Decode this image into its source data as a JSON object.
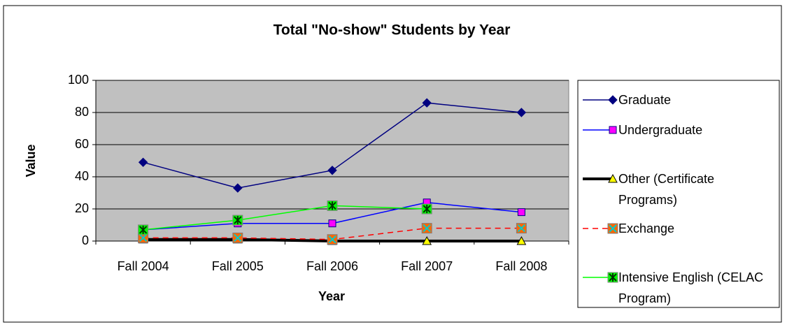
{
  "chart_data": {
    "type": "line",
    "title": "Total \"No-show\" Students by Year",
    "x_label": "Year",
    "y_label": "Value",
    "categories": [
      "Fall 2004",
      "Fall 2005",
      "Fall 2006",
      "Fall 2007",
      "Fall 2008"
    ],
    "ylim": [
      0,
      100
    ],
    "yticks": [
      0,
      20,
      40,
      60,
      80,
      100
    ],
    "grid": true,
    "series": [
      {
        "name": "Graduate",
        "color": "#000080",
        "marker": "diamond",
        "marker_color": "#000080",
        "values": [
          49,
          33,
          44,
          86,
          80
        ]
      },
      {
        "name": "Undergraduate",
        "color": "#0000ff",
        "marker": "square",
        "marker_color": "#ff00ff",
        "values": [
          7,
          11,
          11,
          24,
          18
        ]
      },
      {
        "name": "Other (Certificate Programs)",
        "color": "#000000",
        "line_width": 4,
        "marker": "triangle",
        "marker_color": "#ffff00",
        "values": [
          1,
          1,
          0,
          0,
          0
        ]
      },
      {
        "name": "Exchange",
        "color": "#ff0000",
        "dash": true,
        "marker": "x-square",
        "marker_color": "#ff6600",
        "values": [
          2,
          2,
          1,
          8,
          8
        ]
      },
      {
        "name": "Intensive English (CELAC Program)",
        "color": "#00ff00",
        "marker": "star-square",
        "marker_color": "#00ff00",
        "values": [
          7,
          13,
          22,
          20,
          null
        ]
      }
    ]
  }
}
